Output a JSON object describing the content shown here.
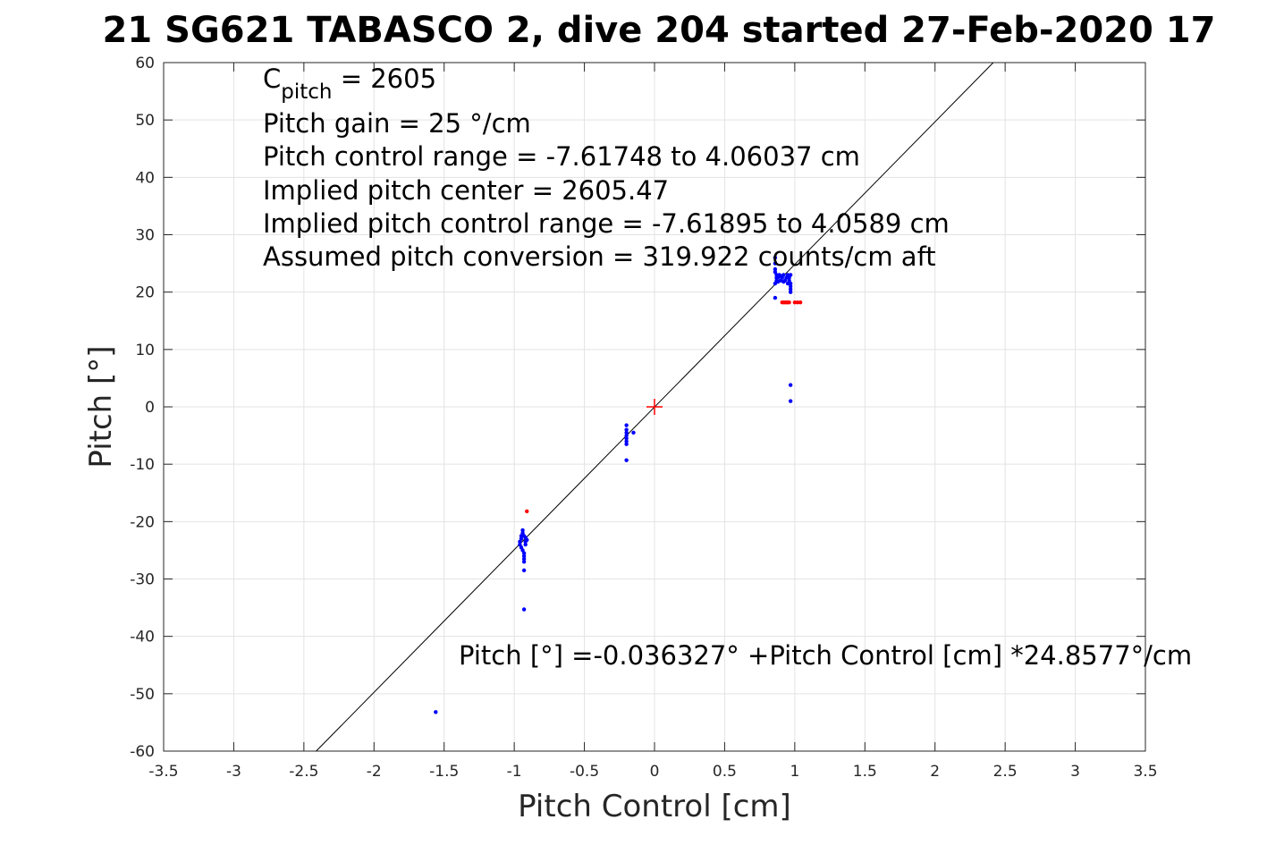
{
  "chart_data": {
    "type": "scatter",
    "title": "21 SG621 TABASCO 2, dive 204 started 27-Feb-2020 17",
    "xlabel": "Pitch Control [cm]",
    "ylabel": "Pitch [°]",
    "xlim": [
      -3.5,
      3.5
    ],
    "ylim": [
      -60,
      60
    ],
    "xticks": [
      "-3.5",
      "-3",
      "-2.5",
      "-2",
      "-1.5",
      "-1",
      "-0.5",
      "0",
      "0.5",
      "1",
      "1.5",
      "2",
      "2.5",
      "3",
      "3.5"
    ],
    "yticks": [
      "60",
      "50",
      "40",
      "30",
      "20",
      "10",
      "0",
      "-10",
      "-20",
      "-30",
      "-40",
      "-50",
      "-60"
    ],
    "grid": true,
    "annotations": {
      "cpitch_main": "C",
      "cpitch_sub": "pitch",
      "cpitch_value": " = 2605",
      "lines": [
        "Pitch gain = 25 °/cm",
        "Pitch control range = -7.61748 to 4.06037 cm",
        "Implied pitch center = 2605.47",
        "Implied pitch control range = -7.61895 to 4.0589 cm",
        "Assumed pitch conversion = 319.922 counts/cm aft"
      ],
      "fit_equation": "Pitch [°] =-0.036327° +Pitch Control [cm] *24.8577°/cm"
    },
    "fit_line": {
      "intercept": -0.036327,
      "slope": 24.8577,
      "color": "#000000"
    },
    "center_marker": {
      "x": 0,
      "y": 0,
      "color": "#ff0000"
    },
    "series": [
      {
        "color": "#0000ff",
        "points": [
          [
            0.86,
            26
          ],
          [
            0.86,
            25
          ],
          [
            0.86,
            24
          ],
          [
            0.86,
            23.5
          ],
          [
            0.87,
            23
          ],
          [
            0.87,
            22.5
          ],
          [
            0.87,
            22
          ],
          [
            0.86,
            21.5
          ],
          [
            0.88,
            22.5
          ],
          [
            0.89,
            23
          ],
          [
            0.9,
            22
          ],
          [
            0.91,
            22.5
          ],
          [
            0.92,
            23
          ],
          [
            0.93,
            22
          ],
          [
            0.94,
            22.5
          ],
          [
            0.95,
            23
          ],
          [
            0.96,
            22.5
          ],
          [
            0.97,
            23
          ],
          [
            0.96,
            22
          ],
          [
            0.97,
            21.5
          ],
          [
            0.97,
            21
          ],
          [
            0.97,
            20.5
          ],
          [
            0.97,
            20
          ],
          [
            0.95,
            21.5
          ],
          [
            0.92,
            21.8
          ],
          [
            0.9,
            22.8
          ],
          [
            0.88,
            21.8
          ],
          [
            0.86,
            19
          ],
          [
            0.97,
            3.8
          ],
          [
            0.97,
            1
          ],
          [
            -0.2,
            -3.2
          ],
          [
            -0.2,
            -4
          ],
          [
            -0.2,
            -4.5
          ],
          [
            -0.2,
            -5
          ],
          [
            -0.2,
            -5.5
          ],
          [
            -0.2,
            -6
          ],
          [
            -0.2,
            -6.5
          ],
          [
            -0.15,
            -4.5
          ],
          [
            -0.2,
            -9.3
          ],
          [
            -0.94,
            -21.5
          ],
          [
            -0.94,
            -22
          ],
          [
            -0.93,
            -22.5
          ],
          [
            -0.92,
            -22.8
          ],
          [
            -0.91,
            -23.2
          ],
          [
            -0.95,
            -23
          ],
          [
            -0.96,
            -23.5
          ],
          [
            -0.96,
            -24
          ],
          [
            -0.95,
            -24.5
          ],
          [
            -0.94,
            -25
          ],
          [
            -0.93,
            -25.5
          ],
          [
            -0.93,
            -26
          ],
          [
            -0.93,
            -26.5
          ],
          [
            -0.93,
            -27
          ],
          [
            -0.92,
            -24
          ],
          [
            -0.92,
            -23.5
          ],
          [
            -0.95,
            -22.5
          ],
          [
            -0.93,
            -28.5
          ],
          [
            -0.93,
            -35.3
          ],
          [
            -1.56,
            -53.2
          ]
        ]
      },
      {
        "color": "#ff0000",
        "points": [
          [
            0.91,
            18.2
          ],
          [
            0.92,
            18.2
          ],
          [
            0.93,
            18.2
          ],
          [
            0.94,
            18.2
          ],
          [
            0.95,
            18.2
          ],
          [
            0.96,
            18.2
          ],
          [
            1.0,
            18.2
          ],
          [
            1.02,
            18.2
          ],
          [
            1.04,
            18.2
          ],
          [
            -0.91,
            -18.2
          ]
        ]
      }
    ]
  }
}
